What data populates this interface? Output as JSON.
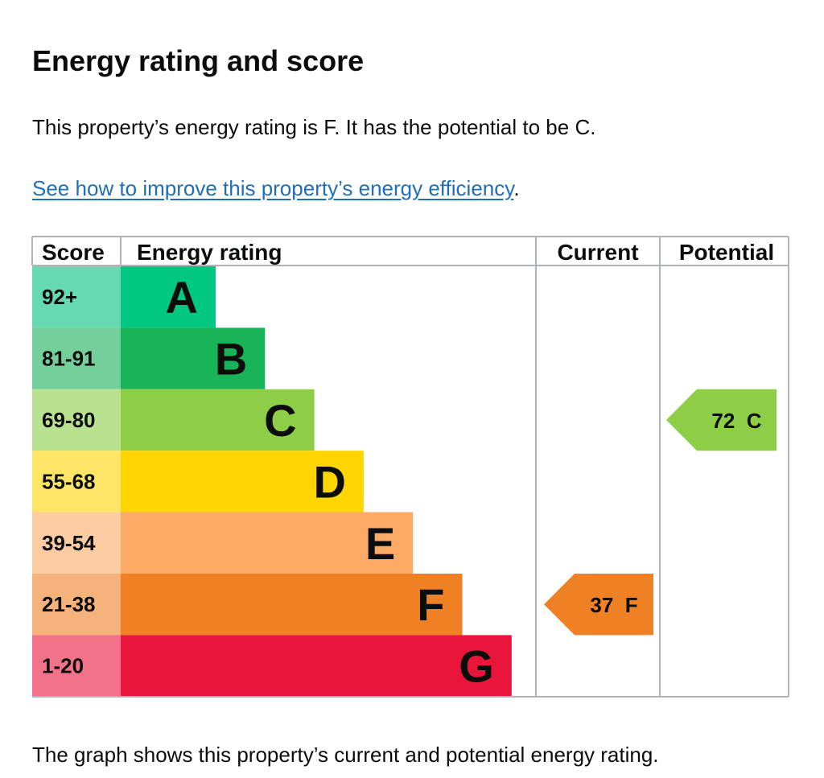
{
  "page": {
    "title": "Energy rating and score",
    "summary": "This property’s energy rating is F. It has the potential to be C.",
    "link_text": "See how to improve this property’s energy efficiency",
    "link_suffix": ".",
    "footnote": "The graph shows this property’s current and potential energy rating."
  },
  "chart_data": {
    "type": "bar",
    "headers": {
      "score": "Score",
      "rating": "Energy rating",
      "current": "Current",
      "potential": "Potential"
    },
    "bands": [
      {
        "letter": "A",
        "range": "92+",
        "color": "#00c781",
        "score_bg": "#66d8b2"
      },
      {
        "letter": "B",
        "range": "81-91",
        "color": "#19b459",
        "score_bg": "#74cf9a"
      },
      {
        "letter": "C",
        "range": "69-80",
        "color": "#8dce46",
        "score_bg": "#b9e290"
      },
      {
        "letter": "D",
        "range": "55-68",
        "color": "#ffd500",
        "score_bg": "#ffe566"
      },
      {
        "letter": "E",
        "range": "39-54",
        "color": "#fcaa65",
        "score_bg": "#fdcca3"
      },
      {
        "letter": "F",
        "range": "21-38",
        "color": "#ef8023",
        "score_bg": "#f5b37b"
      },
      {
        "letter": "G",
        "range": "1-20",
        "color": "#e9153b",
        "score_bg": "#f27389"
      }
    ],
    "current": {
      "score": 37,
      "band": "F",
      "label": "37  F",
      "color": "#ef8023"
    },
    "potential": {
      "score": 72,
      "band": "C",
      "label": "72  C",
      "color": "#8dce46"
    }
  }
}
